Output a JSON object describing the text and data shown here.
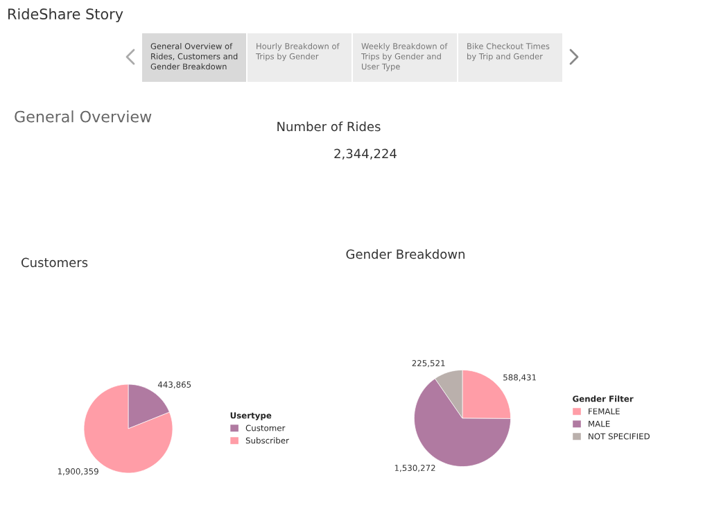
{
  "chart_data": [
    {
      "type": "other",
      "title": "RideShare Story",
      "annotations": [
        "General Overview of\nRides, Customers and\nGender Breakdown",
        "Hourly Breakdown of\nTrips by Gender",
        "Weekly Breakdown of\nTrips by Gender and\nUser Type",
        "Bike Checkout Times\nby Trip and Gender",
        "General Overview",
        "Number of Rides",
        "2,344,224"
      ]
    },
    {
      "type": "pie",
      "title": "Customers",
      "legend_title": "Usertype",
      "legend": "right",
      "categories": [
        "Customer",
        "Subscriber"
      ],
      "values": [
        443865,
        1900359
      ],
      "value_labels": [
        "443,865",
        "1,900,359"
      ],
      "colors": [
        "#b07aa1",
        "#ff9da7"
      ]
    },
    {
      "type": "pie",
      "title": "Gender Breakdown",
      "legend_title": "Gender Filter",
      "legend": "right",
      "categories": [
        "FEMALE",
        "MALE",
        "NOT SPECIFIED"
      ],
      "values": [
        588431,
        1530272,
        225521
      ],
      "value_labels": [
        "588,431",
        "1,530,272",
        "225,521"
      ],
      "colors": [
        "#ff9da7",
        "#b07aa1",
        "#bab0ac"
      ]
    }
  ]
}
